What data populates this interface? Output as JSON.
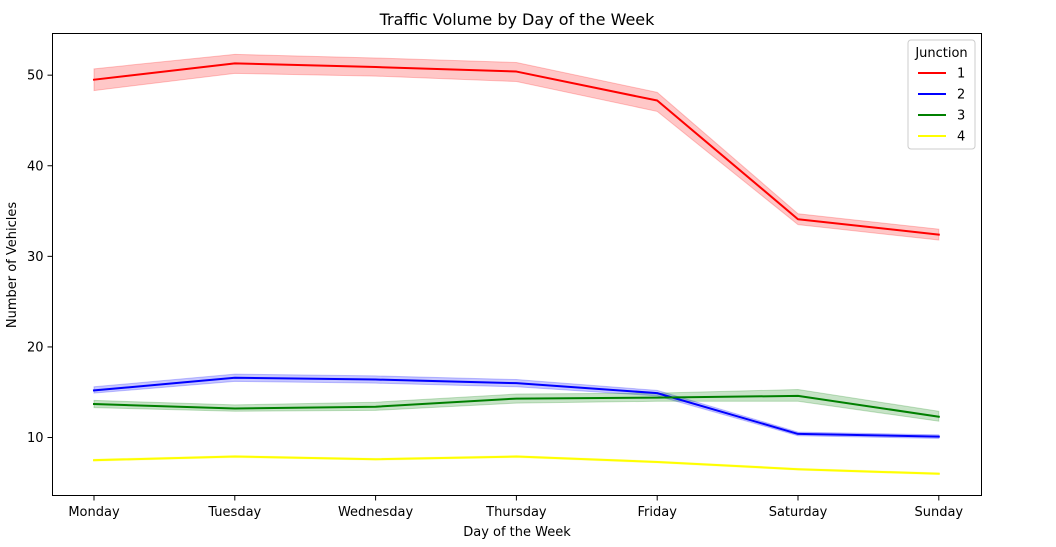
{
  "chart_data": {
    "type": "line",
    "title": "Traffic Volume by Day of the Week",
    "xlabel": "Day of the Week",
    "ylabel": "Number of Vehicles",
    "categories": [
      "Monday",
      "Tuesday",
      "Wednesday",
      "Thursday",
      "Friday",
      "Saturday",
      "Sunday"
    ],
    "ylim": [
      3.6,
      54.6
    ],
    "yticks": [
      10,
      20,
      30,
      40,
      50
    ],
    "grid": false,
    "legend": {
      "title": "Junction",
      "placement": "top-right"
    },
    "series": [
      {
        "name": "1",
        "color": "#ff0000",
        "values": [
          49.5,
          51.3,
          50.9,
          50.4,
          47.2,
          34.1,
          32.4
        ],
        "ci_low": [
          48.3,
          50.2,
          49.9,
          49.3,
          46.0,
          33.5,
          31.8
        ],
        "ci_high": [
          50.7,
          52.3,
          51.9,
          51.4,
          48.1,
          34.7,
          33.0
        ]
      },
      {
        "name": "2",
        "color": "#0000ff",
        "values": [
          15.2,
          16.6,
          16.4,
          16.0,
          14.9,
          10.4,
          10.1
        ],
        "ci_low": [
          14.9,
          16.2,
          16.0,
          15.6,
          14.6,
          10.2,
          9.9
        ],
        "ci_high": [
          15.6,
          17.0,
          16.8,
          16.4,
          15.2,
          10.6,
          10.3
        ]
      },
      {
        "name": "3",
        "color": "#008000",
        "values": [
          13.7,
          13.2,
          13.4,
          14.3,
          14.4,
          14.6,
          12.3
        ],
        "ci_low": [
          13.3,
          12.9,
          13.0,
          13.8,
          14.0,
          14.0,
          11.8
        ],
        "ci_high": [
          14.1,
          13.6,
          13.9,
          14.8,
          14.9,
          15.3,
          12.9
        ]
      },
      {
        "name": "4",
        "color": "#ffff00",
        "values": [
          7.5,
          7.9,
          7.6,
          7.9,
          7.3,
          6.5,
          6.0
        ],
        "ci_low": [
          7.4,
          7.8,
          7.5,
          7.8,
          7.2,
          6.4,
          5.9
        ],
        "ci_high": [
          7.6,
          8.0,
          7.7,
          8.0,
          7.4,
          6.6,
          6.1
        ]
      }
    ]
  }
}
